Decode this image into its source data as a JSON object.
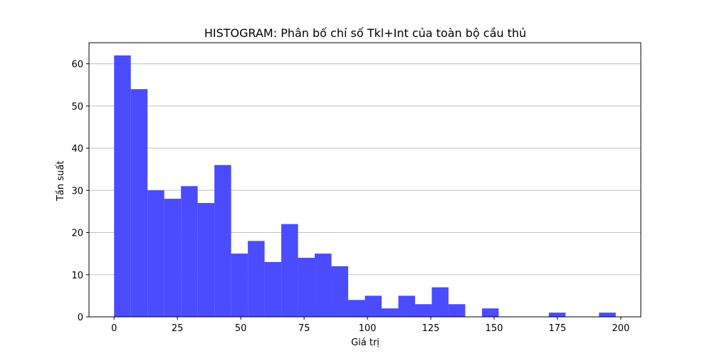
{
  "chart_data": {
    "type": "bar",
    "title": "HISTOGRAM: Phân bố chỉ số Tkl+Int của toàn bộ cầu thủ",
    "xlabel": "Giá trị",
    "ylabel": "Tần suất",
    "bin_start": 0,
    "bin_width": 6.6,
    "values": [
      62,
      54,
      30,
      28,
      31,
      27,
      36,
      15,
      18,
      13,
      22,
      14,
      15,
      12,
      4,
      5,
      2,
      5,
      3,
      7,
      3,
      0,
      2,
      0,
      0,
      0,
      1,
      0,
      0,
      1
    ],
    "xlim": [
      -9.9,
      207.9
    ],
    "ylim": [
      0,
      65
    ],
    "xticks": [
      0,
      25,
      50,
      75,
      100,
      125,
      150,
      175,
      200
    ],
    "yticks": [
      0,
      10,
      20,
      30,
      40,
      50,
      60
    ],
    "grid": "y",
    "bar_color": "#4b4bff"
  }
}
